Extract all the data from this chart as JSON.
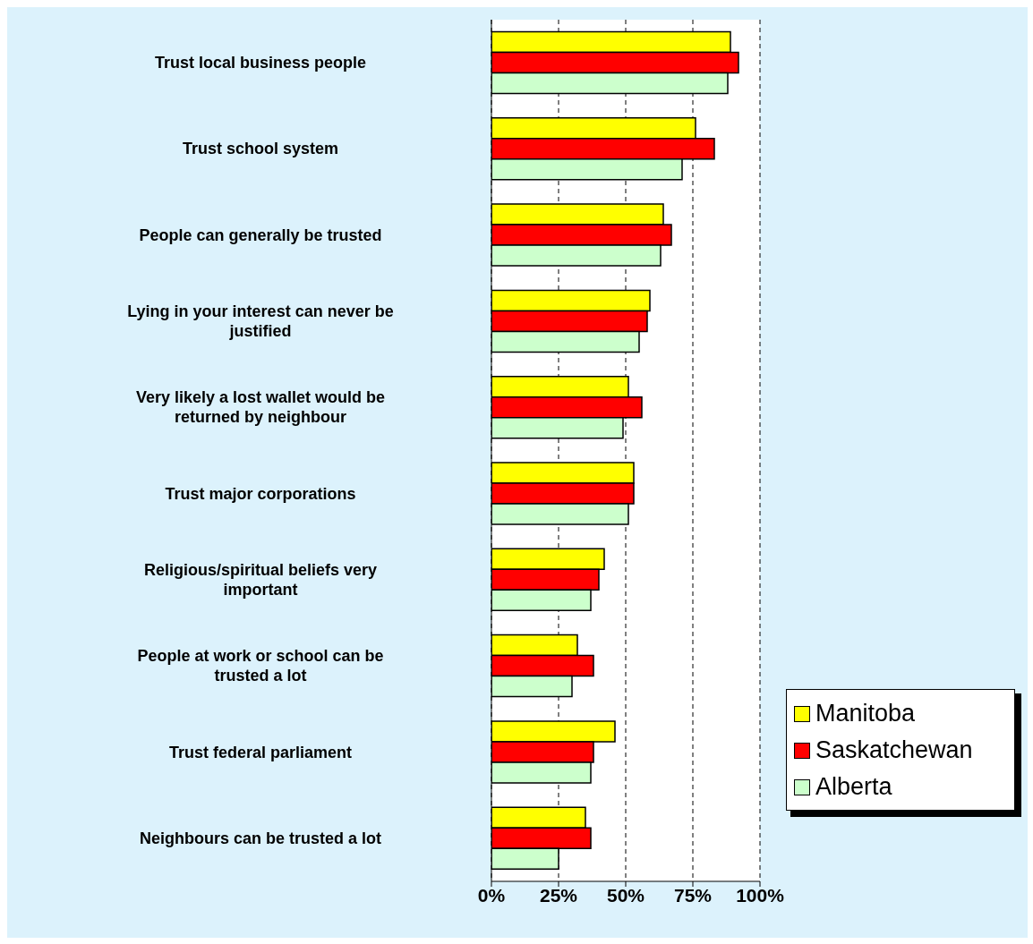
{
  "chart_data": {
    "type": "bar",
    "orientation": "horizontal",
    "categories": [
      "Trust local business people",
      "Trust school system",
      "People can generally be trusted",
      "Lying in your interest can never be justified",
      "Very likely a lost wallet would be returned by neighbour",
      "Trust major corporations",
      "Religious/spiritual beliefs very important",
      "People at work or school can be trusted a lot",
      "Trust federal parliament",
      "Neighbours can be trusted a lot"
    ],
    "series": [
      {
        "name": "Manitoba",
        "color": "#ffff00",
        "values": [
          89,
          76,
          64,
          59,
          51,
          53,
          42,
          32,
          46,
          35
        ]
      },
      {
        "name": "Saskatchewan",
        "color": "#ff0000",
        "values": [
          92,
          83,
          67,
          58,
          56,
          53,
          40,
          38,
          38,
          37
        ]
      },
      {
        "name": "Alberta",
        "color": "#ccffcc",
        "values": [
          88,
          71,
          63,
          55,
          49,
          51,
          37,
          30,
          37,
          25
        ]
      }
    ],
    "xlim": [
      0,
      100
    ],
    "xticks": [
      {
        "value": 0,
        "label": "0%"
      },
      {
        "value": 25,
        "label": "25%"
      },
      {
        "value": 50,
        "label": "50%"
      },
      {
        "value": 75,
        "label": "75%"
      },
      {
        "value": 100,
        "label": "100%"
      }
    ],
    "grid": "x",
    "legend": "bottom right"
  }
}
